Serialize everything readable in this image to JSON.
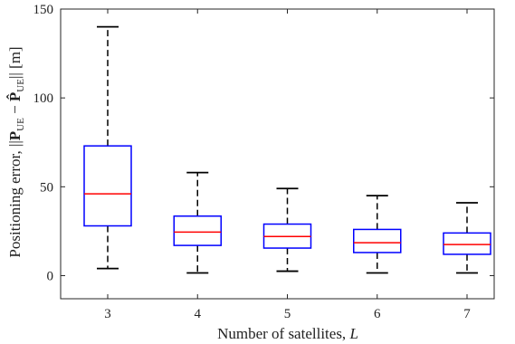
{
  "chart_data": {
    "type": "box",
    "xlabel_text": "Number of satellites, ",
    "xlabel_var": "L",
    "ylabel_prefix": "Positioning error, ||",
    "ylabel_p": "P",
    "ylabel_sub": "UE",
    "ylabel_minus": " − ",
    "ylabel_phat": "P̂",
    "ylabel_sub2": "UE",
    "ylabel_suffix": "|| [m]",
    "ylim": [
      -13,
      150
    ],
    "yticks": [
      0,
      50,
      100,
      150
    ],
    "ytick_labels": [
      "0",
      "50",
      "100",
      "150"
    ],
    "categories": [
      "3",
      "4",
      "5",
      "6",
      "7"
    ],
    "boxes": [
      {
        "category": "3",
        "whisker_low": 4,
        "q1": 28,
        "median": 46,
        "q3": 73,
        "whisker_high": 140
      },
      {
        "category": "4",
        "whisker_low": 1.5,
        "q1": 17,
        "median": 24.5,
        "q3": 33.5,
        "whisker_high": 58
      },
      {
        "category": "5",
        "whisker_low": 2.5,
        "q1": 15.5,
        "median": 22,
        "q3": 29,
        "whisker_high": 49
      },
      {
        "category": "6",
        "whisker_low": 1.5,
        "q1": 13,
        "median": 18.5,
        "q3": 26,
        "whisker_high": 45
      },
      {
        "category": "7",
        "whisker_low": 1.5,
        "q1": 12,
        "median": 17.5,
        "q3": 24,
        "whisker_high": 41
      }
    ],
    "colors": {
      "box": "#0000ff",
      "median": "#ff0000",
      "whisker": "#000000",
      "axis": "#262626"
    },
    "grid": false
  }
}
